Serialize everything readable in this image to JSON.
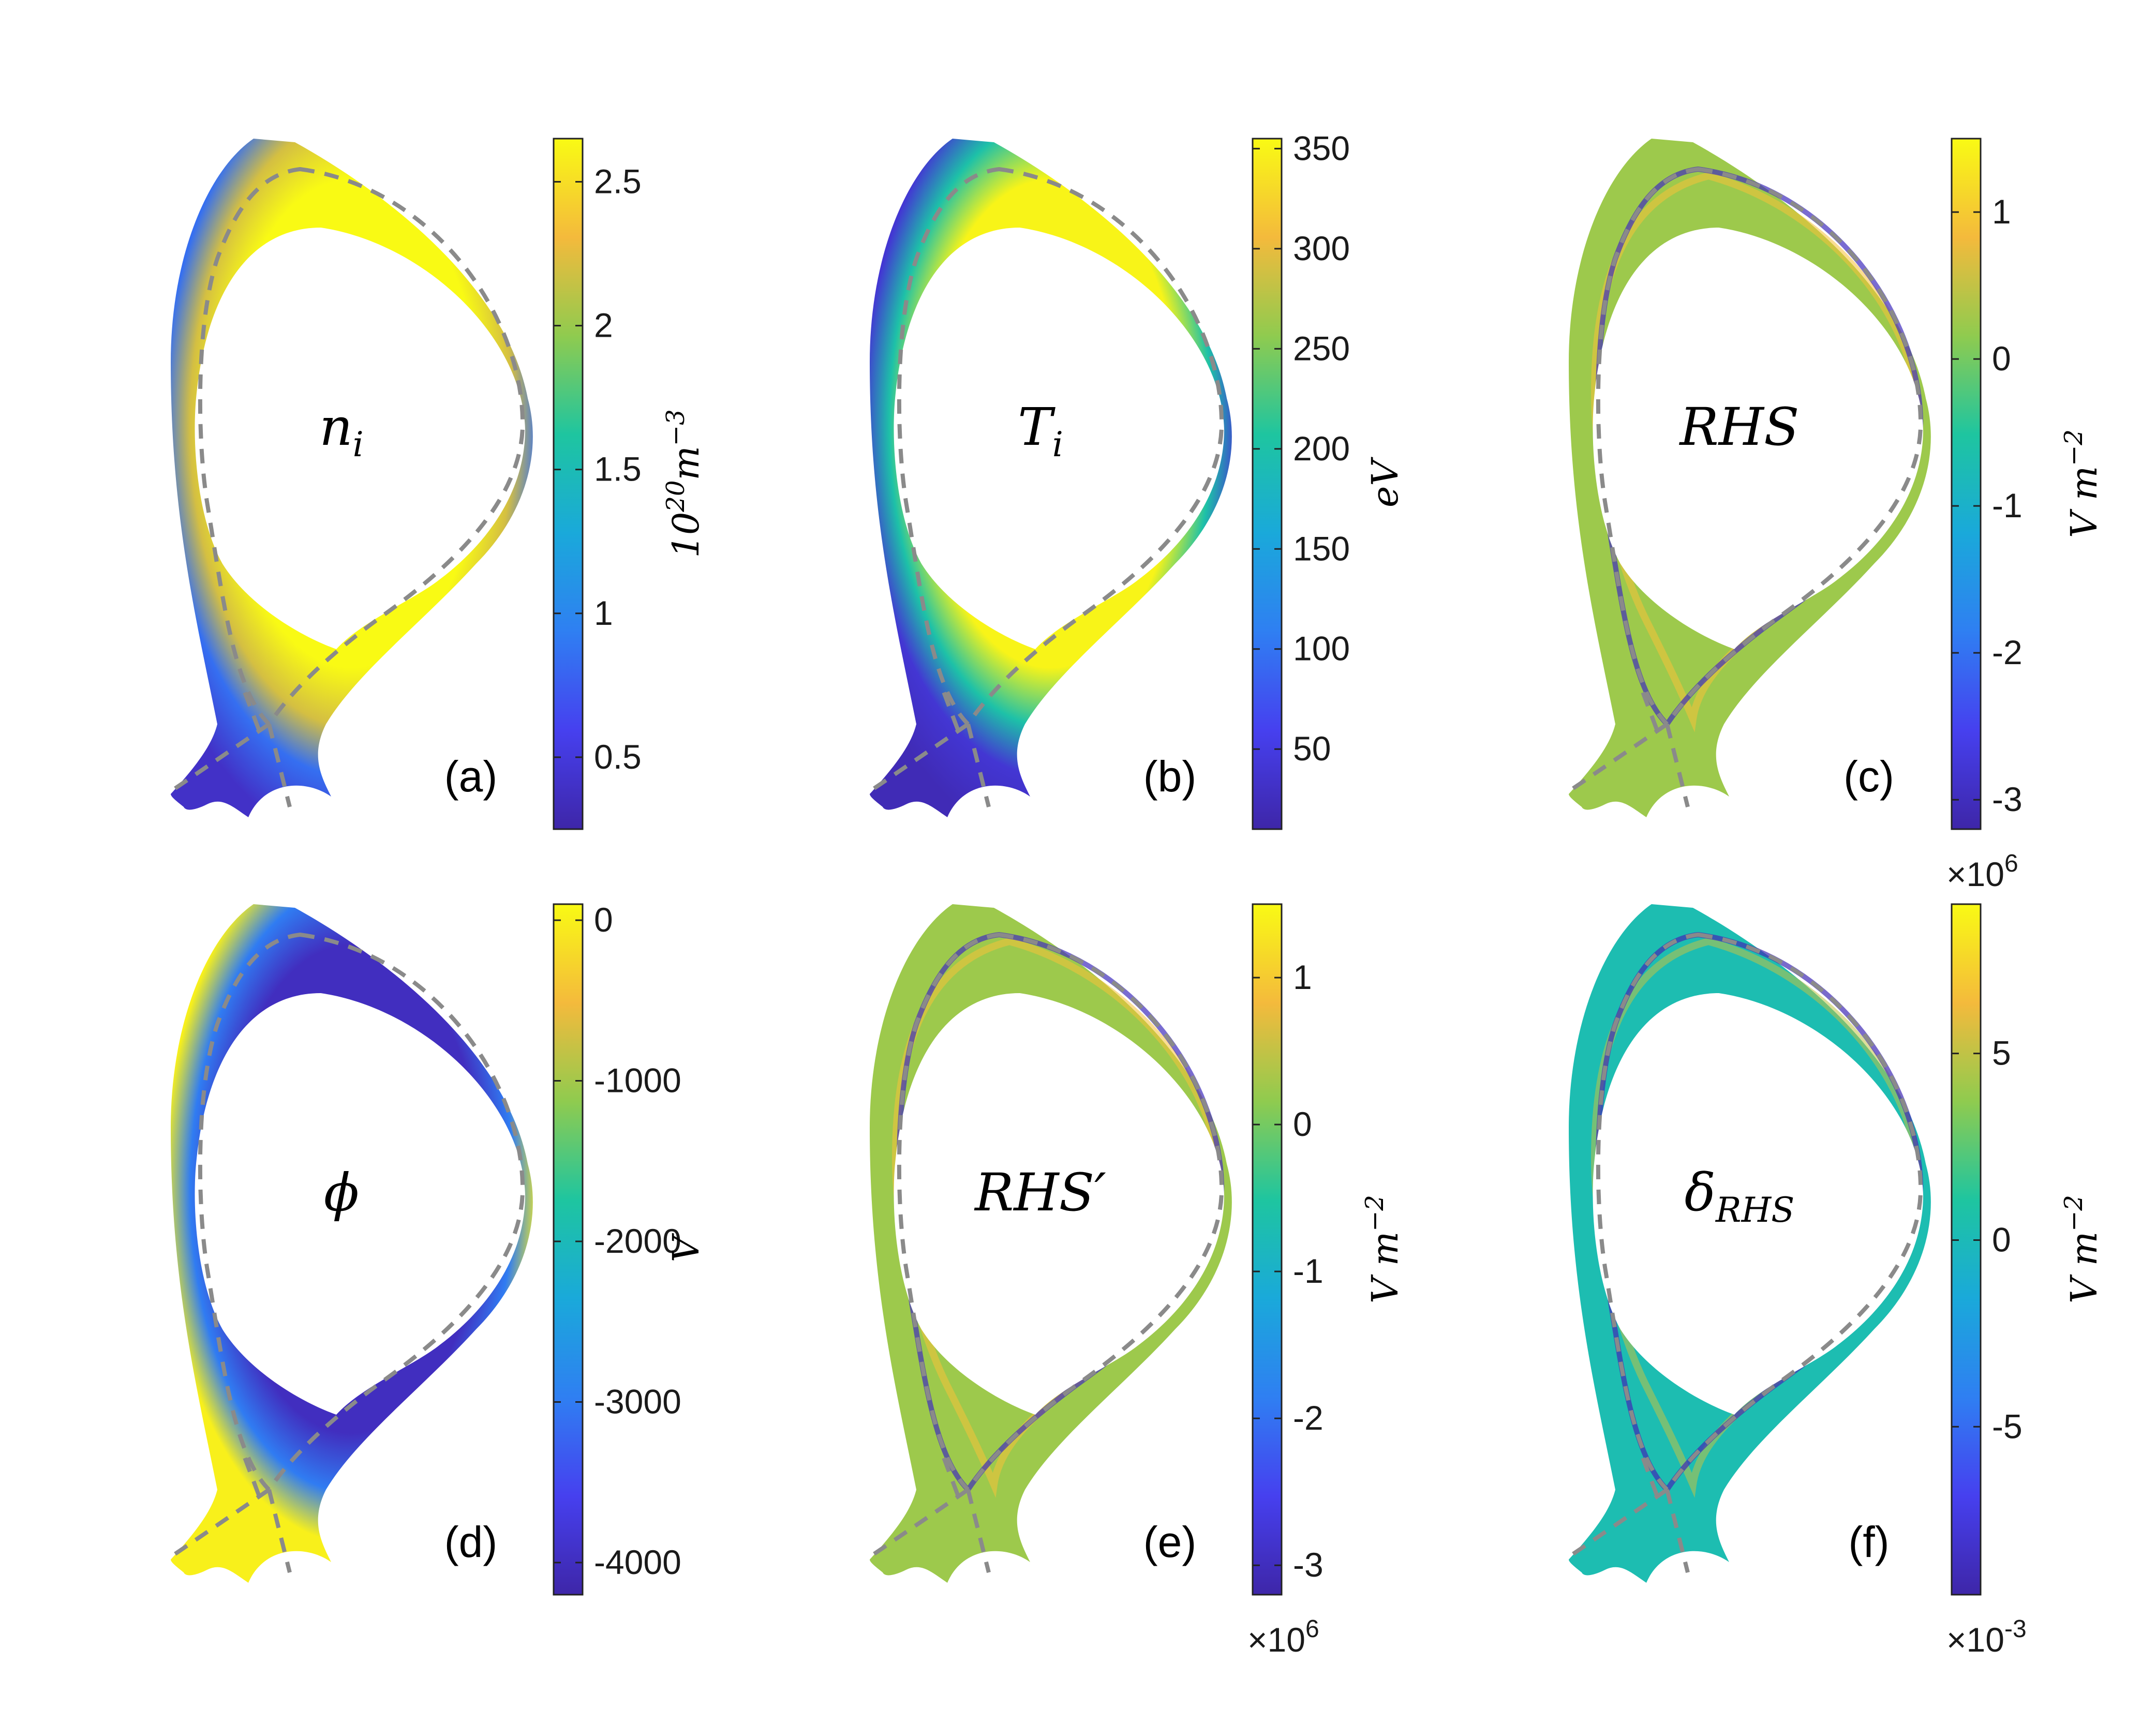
{
  "chart_data": [
    {
      "type": "heatmap",
      "panel": "(a)",
      "variable": "n_i",
      "colorbar": {
        "label": "10^20 m^-3",
        "range": [
          0.25,
          2.65
        ],
        "ticks": [
          "0.5",
          "1",
          "1.5",
          "2",
          "2.5"
        ]
      },
      "field": {
        "core": 2.65,
        "separatrix_edge": 2.2,
        "sol": 0.85,
        "divertor_legs": 0.4
      }
    },
    {
      "type": "heatmap",
      "panel": "(b)",
      "variable": "T_i",
      "colorbar": {
        "label": "eV",
        "range": [
          10,
          355
        ],
        "ticks": [
          "50",
          "100",
          "150",
          "200",
          "250",
          "300",
          "350"
        ]
      },
      "field": {
        "core": 350,
        "separatrix_edge": 200,
        "sol": 40,
        "divertor_legs": 20
      }
    },
    {
      "type": "heatmap",
      "panel": "(c)",
      "variable": "RHS",
      "colorbar": {
        "label": "V m^-2",
        "range": [
          -3.2,
          1.5
        ],
        "ticks": [
          "1",
          "0",
          "-1",
          "-2",
          "-3"
        ],
        "multiplier": "×10^6"
      },
      "field": {
        "background": 0.25,
        "separatrix_band_min": -3.0,
        "separatrix_band_max": 0.9
      }
    },
    {
      "type": "heatmap",
      "panel": "(d)",
      "variable": "phi",
      "colorbar": {
        "label": "V",
        "range": [
          -4200,
          100
        ],
        "ticks": [
          "0",
          "-1000",
          "-2000",
          "-3000",
          "-4000"
        ]
      },
      "field": {
        "core": -4000,
        "separatrix_edge": -3000,
        "sol": 0,
        "divertor_legs": 0
      }
    },
    {
      "type": "heatmap",
      "panel": "(e)",
      "variable": "RHS'",
      "colorbar": {
        "label": "V m^-2",
        "range": [
          -3.2,
          1.5
        ],
        "ticks": [
          "1",
          "0",
          "-1",
          "-2",
          "-3"
        ],
        "multiplier": "×10^6"
      },
      "field": {
        "background": 0.25,
        "separatrix_band_min": -3.0,
        "separatrix_band_max": 0.9
      }
    },
    {
      "type": "heatmap",
      "panel": "(f)",
      "variable": "delta_RHS",
      "colorbar": {
        "label": "V m^-2",
        "range": [
          -9.5,
          9
        ],
        "ticks": [
          "5",
          "0",
          "-5"
        ],
        "multiplier": "×10^-3"
      },
      "field": {
        "background": 0.3,
        "min": -9.0,
        "max": 5.0
      }
    }
  ],
  "panels": [
    {
      "id": "a",
      "label": "(a)",
      "var": "n",
      "sub": "i",
      "prime": "",
      "cb_text": "10",
      "cb_sup1": "20",
      "cb_mid": "m",
      "cb_sup2": "−3",
      "mult_base": "",
      "mult_exp": ""
    },
    {
      "id": "b",
      "label": "(b)",
      "var": "T",
      "sub": "i",
      "prime": "",
      "cb_text": "eV",
      "cb_sup1": "",
      "cb_mid": "",
      "cb_sup2": "",
      "mult_base": "",
      "mult_exp": ""
    },
    {
      "id": "c",
      "label": "(c)",
      "var": "RHS",
      "sub": "",
      "prime": "",
      "cb_text": "V m",
      "cb_sup1": "−2",
      "cb_mid": "",
      "cb_sup2": "",
      "mult_base": "×10",
      "mult_exp": "6"
    },
    {
      "id": "d",
      "label": "(d)",
      "var": "ϕ",
      "sub": "",
      "prime": "",
      "cb_text": "V",
      "cb_sup1": "",
      "cb_mid": "",
      "cb_sup2": "",
      "mult_base": "",
      "mult_exp": ""
    },
    {
      "id": "e",
      "label": "(e)",
      "var": "RHS",
      "sub": "",
      "prime": "′",
      "cb_text": "V m",
      "cb_sup1": "−2",
      "cb_mid": "",
      "cb_sup2": "",
      "mult_base": "×10",
      "mult_exp": "6"
    },
    {
      "id": "f",
      "label": "(f)",
      "var": "δ",
      "sub": "RHS",
      "prime": "",
      "cb_text": "V m",
      "cb_sup1": "−2",
      "cb_mid": "",
      "cb_sup2": "",
      "mult_base": "×10",
      "mult_exp": "-3"
    }
  ],
  "colors": {
    "parula": [
      "#3e26a8",
      "#4640ef",
      "#2f7ff2",
      "#1aa9da",
      "#1ec5a0",
      "#8fcb4f",
      "#f4ba3c",
      "#f9fa14"
    ],
    "separatrix": "#8a8a8a"
  }
}
